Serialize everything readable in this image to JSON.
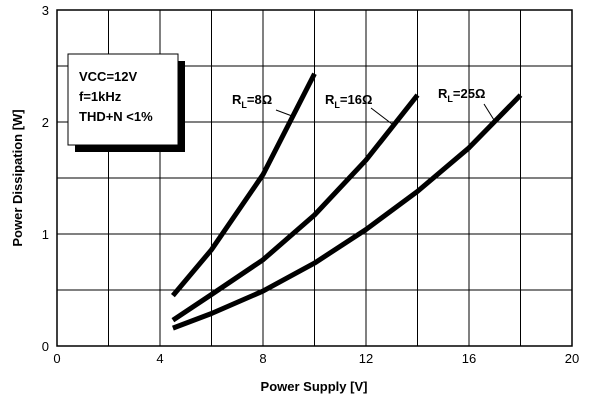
{
  "chart_data": {
    "type": "line",
    "xlabel": "Power Supply [V]",
    "ylabel": "Power Dissipation [W]",
    "xlim": [
      0,
      20
    ],
    "ylim": [
      0,
      3
    ],
    "xticks": [
      "0",
      "4",
      "8",
      "12",
      "16",
      "20"
    ],
    "yticks": [
      "0",
      "1",
      "2",
      "3"
    ],
    "grid": true,
    "conditions": [
      "VCC=12V",
      "f=1kHz",
      "THD+N <1%"
    ],
    "series": [
      {
        "name": "RL=8Ω",
        "label_main": "R",
        "label_sub": "L",
        "label_rest": "=8Ω",
        "x": [
          4.5,
          6,
          8,
          10
        ],
        "y": [
          0.45,
          0.86,
          1.53,
          2.43
        ]
      },
      {
        "name": "RL=16Ω",
        "label_main": "R",
        "label_sub": "L",
        "label_rest": "=16Ω",
        "x": [
          4.5,
          6,
          8,
          10,
          12,
          14
        ],
        "y": [
          0.23,
          0.46,
          0.77,
          1.17,
          1.66,
          2.24
        ]
      },
      {
        "name": "RL=25Ω",
        "label_main": "R",
        "label_sub": "L",
        "label_rest": "=25Ω",
        "x": [
          4.5,
          6,
          8,
          10,
          12,
          14,
          16,
          18
        ],
        "y": [
          0.16,
          0.29,
          0.49,
          0.74,
          1.04,
          1.38,
          1.77,
          2.24
        ]
      }
    ]
  }
}
